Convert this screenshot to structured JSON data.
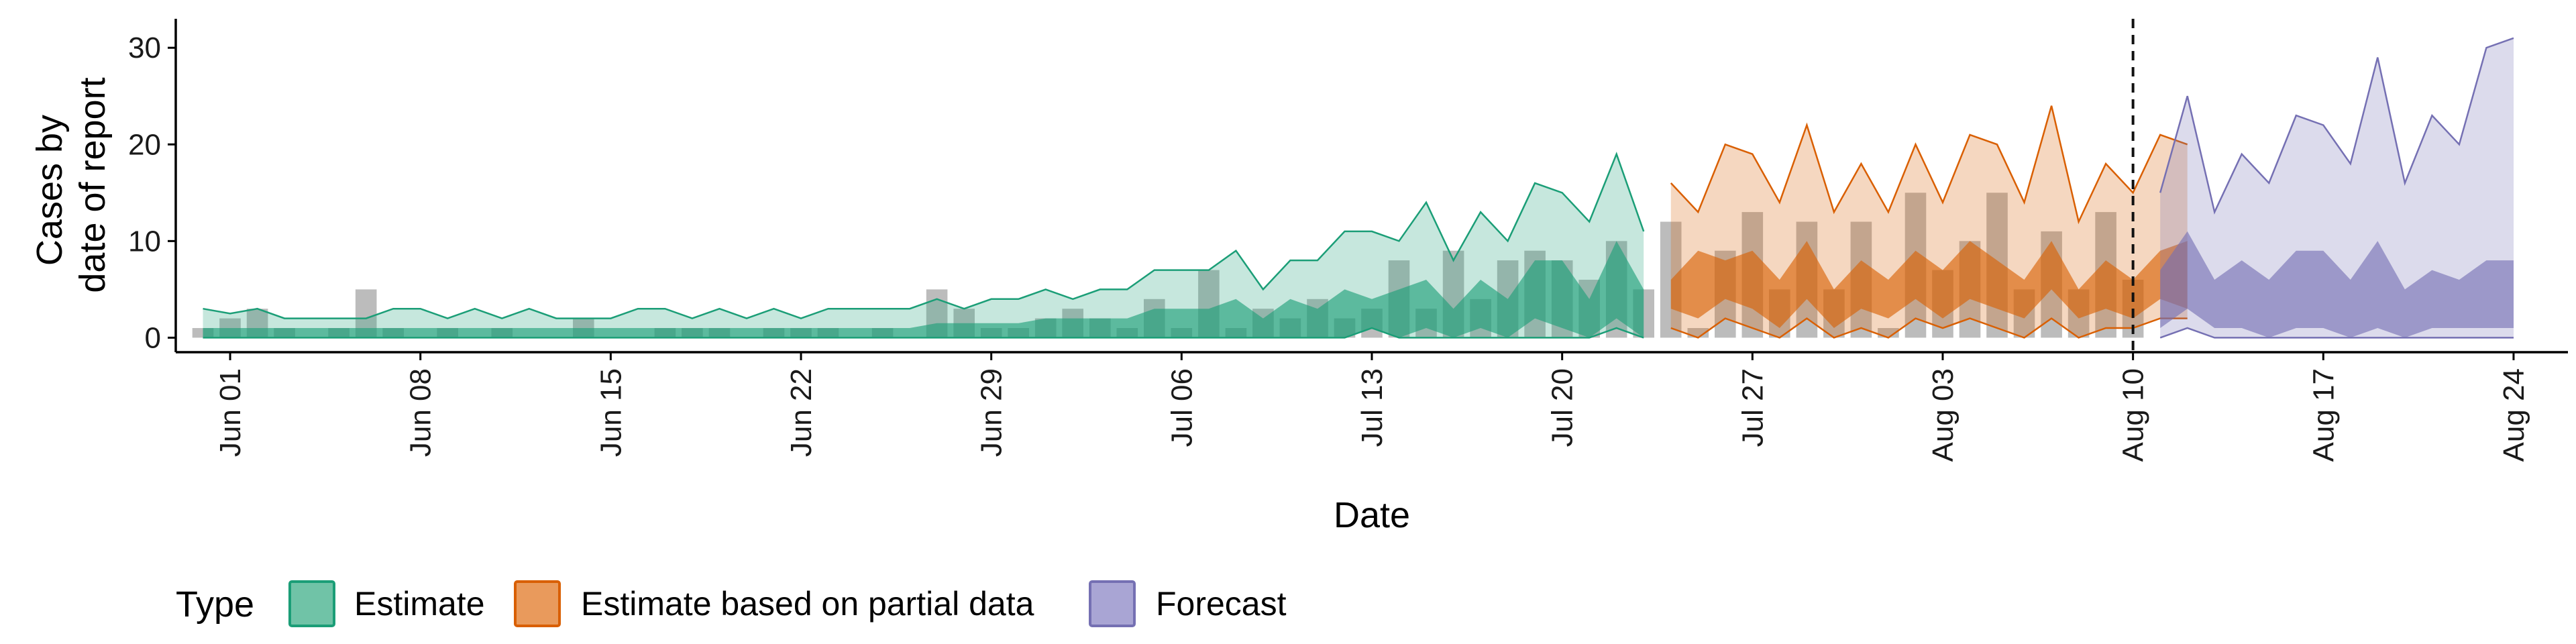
{
  "chart_data": {
    "type": "area",
    "xlabel": "Date",
    "ylabel": [
      "Cases by",
      "date of report"
    ],
    "ylim": [
      -1.5,
      33
    ],
    "y_ticks": [
      0,
      10,
      20,
      30
    ],
    "x_start": "2020-05-30",
    "x_end": "2020-08-26",
    "x_ticks": [
      {
        "date": "2020-06-01",
        "label": "Jun 01"
      },
      {
        "date": "2020-06-08",
        "label": "Jun 08"
      },
      {
        "date": "2020-06-15",
        "label": "Jun 15"
      },
      {
        "date": "2020-06-22",
        "label": "Jun 22"
      },
      {
        "date": "2020-06-29",
        "label": "Jun 29"
      },
      {
        "date": "2020-07-06",
        "label": "Jul 06"
      },
      {
        "date": "2020-07-13",
        "label": "Jul 13"
      },
      {
        "date": "2020-07-20",
        "label": "Jul 20"
      },
      {
        "date": "2020-07-27",
        "label": "Jul 27"
      },
      {
        "date": "2020-08-03",
        "label": "Aug 03"
      },
      {
        "date": "2020-08-10",
        "label": "Aug 10"
      },
      {
        "date": "2020-08-17",
        "label": "Aug 17"
      },
      {
        "date": "2020-08-24",
        "label": "Aug 24"
      }
    ],
    "vline_date": "2020-08-10",
    "grid": false,
    "legend": {
      "position": "bottom-left",
      "title": "Type",
      "entries": [
        {
          "label": "Estimate",
          "fill": "#70c3a7",
          "stroke": "#1b9e77"
        },
        {
          "label": "Estimate based on partial data",
          "fill": "#e99a5c",
          "stroke": "#d95f02"
        },
        {
          "label": "Forecast",
          "fill": "#a9a5d4",
          "stroke": "#7570b3"
        }
      ]
    },
    "bar_color": "#a6a6a6",
    "bars": {
      "start": "2020-05-31",
      "values": [
        1,
        2,
        3,
        1,
        0,
        1,
        5,
        1,
        0,
        1,
        0,
        1,
        0,
        0,
        2,
        0,
        0,
        1,
        1,
        1,
        0,
        1,
        1,
        1,
        0,
        1,
        0,
        5,
        3,
        1,
        1,
        2,
        3,
        2,
        1,
        4,
        1,
        7,
        1,
        3,
        2,
        4,
        2,
        3,
        8,
        3,
        9,
        4,
        8,
        9,
        8,
        6,
        10,
        5,
        12,
        1,
        9,
        13,
        5,
        12,
        5,
        12,
        1,
        15,
        7,
        10,
        15,
        5,
        11,
        5,
        13,
        6
      ],
      "note": ""
    },
    "series": [
      {
        "name": "Estimate",
        "start": "2020-05-31",
        "fill": "#1b9e77",
        "stroke": "#1b9e77",
        "outer_fill_opacity": 0.25,
        "inner_fill_opacity": 0.62,
        "outer_upper": [
          3,
          2.5,
          3,
          2,
          2,
          2,
          2,
          3,
          3,
          2,
          3,
          2,
          3,
          2,
          2,
          2,
          3,
          3,
          2,
          3,
          2,
          3,
          2,
          3,
          3,
          3,
          3,
          4,
          3,
          4,
          4,
          5,
          4,
          5,
          5,
          7,
          7,
          7,
          9,
          5,
          8,
          8,
          11,
          11,
          10,
          14,
          8,
          13,
          10,
          16,
          15,
          12,
          19,
          11
        ],
        "outer_lower": [
          0,
          0,
          0,
          0,
          0,
          0,
          0,
          0,
          0,
          0,
          0,
          0,
          0,
          0,
          0,
          0,
          0,
          0,
          0,
          0,
          0,
          0,
          0,
          0,
          0,
          0,
          0,
          0,
          0,
          0,
          0,
          0,
          0,
          0,
          0,
          0,
          0,
          0,
          0,
          0,
          0,
          0,
          0,
          1,
          0,
          0,
          0,
          0,
          0,
          0,
          0,
          0,
          1,
          0
        ],
        "inner_upper": [
          1,
          1,
          1,
          1,
          1,
          1,
          1,
          1,
          1,
          1,
          1,
          1,
          1,
          1,
          1,
          1,
          1,
          1,
          1,
          1,
          1,
          1,
          1,
          1,
          1,
          1,
          1,
          1.5,
          1.5,
          1.5,
          1.5,
          2,
          2,
          2,
          2,
          3,
          3,
          3,
          4,
          2,
          4,
          3,
          5,
          4,
          5,
          6,
          3,
          6,
          4,
          8,
          8,
          4,
          10,
          5
        ],
        "inner_lower": [
          0,
          0,
          0,
          0,
          0,
          0,
          0,
          0,
          0,
          0,
          0,
          0,
          0,
          0,
          0,
          0,
          0,
          0,
          0,
          0,
          0,
          0,
          0,
          0,
          0,
          0,
          0,
          0,
          0,
          0,
          0,
          0,
          0,
          0,
          0,
          0,
          0,
          0,
          0,
          0,
          0,
          0,
          0,
          1,
          0,
          1,
          0,
          1,
          0,
          2,
          1,
          0,
          2,
          0
        ]
      },
      {
        "name": "Estimate based on partial data",
        "start": "2020-07-24",
        "fill": "#d95f02",
        "stroke": "#d95f02",
        "outer_fill_opacity": 0.25,
        "inner_fill_opacity": 0.62,
        "outer_upper": [
          16,
          13,
          20,
          19,
          14,
          22,
          13,
          18,
          13,
          20,
          14,
          21,
          20,
          14,
          24,
          12,
          18,
          15,
          21,
          20
        ],
        "outer_lower": [
          1,
          0,
          2,
          1,
          0,
          2,
          0,
          1,
          0,
          2,
          1,
          2,
          1,
          0,
          2,
          0,
          1,
          1,
          2,
          2
        ],
        "inner_upper": [
          6,
          9,
          8,
          9,
          6,
          10,
          5,
          8,
          6,
          9,
          7,
          10,
          8,
          6,
          10,
          5,
          8,
          6,
          9,
          10
        ],
        "inner_lower": [
          3,
          2,
          4,
          3,
          1,
          4,
          1,
          3,
          2,
          4,
          2,
          4,
          3,
          2,
          5,
          2,
          3,
          2,
          4,
          3
        ]
      },
      {
        "name": "Forecast",
        "start": "2020-08-11",
        "fill": "#7570b3",
        "stroke": "#7570b3",
        "outer_fill_opacity": 0.25,
        "inner_fill_opacity": 0.62,
        "outer_upper": [
          15,
          25,
          13,
          19,
          16,
          23,
          22,
          18,
          29,
          16,
          23,
          20,
          30,
          31
        ],
        "outer_lower": [
          0,
          1,
          0,
          0,
          0,
          0,
          0,
          0,
          0,
          0,
          0,
          0,
          0,
          0
        ],
        "inner_upper": [
          7,
          11,
          6,
          8,
          6,
          9,
          9,
          6,
          10,
          5,
          7,
          6,
          8,
          8
        ],
        "inner_lower": [
          1,
          3,
          1,
          1,
          0,
          1,
          1,
          0,
          1,
          0,
          1,
          1,
          1,
          1
        ]
      }
    ]
  }
}
